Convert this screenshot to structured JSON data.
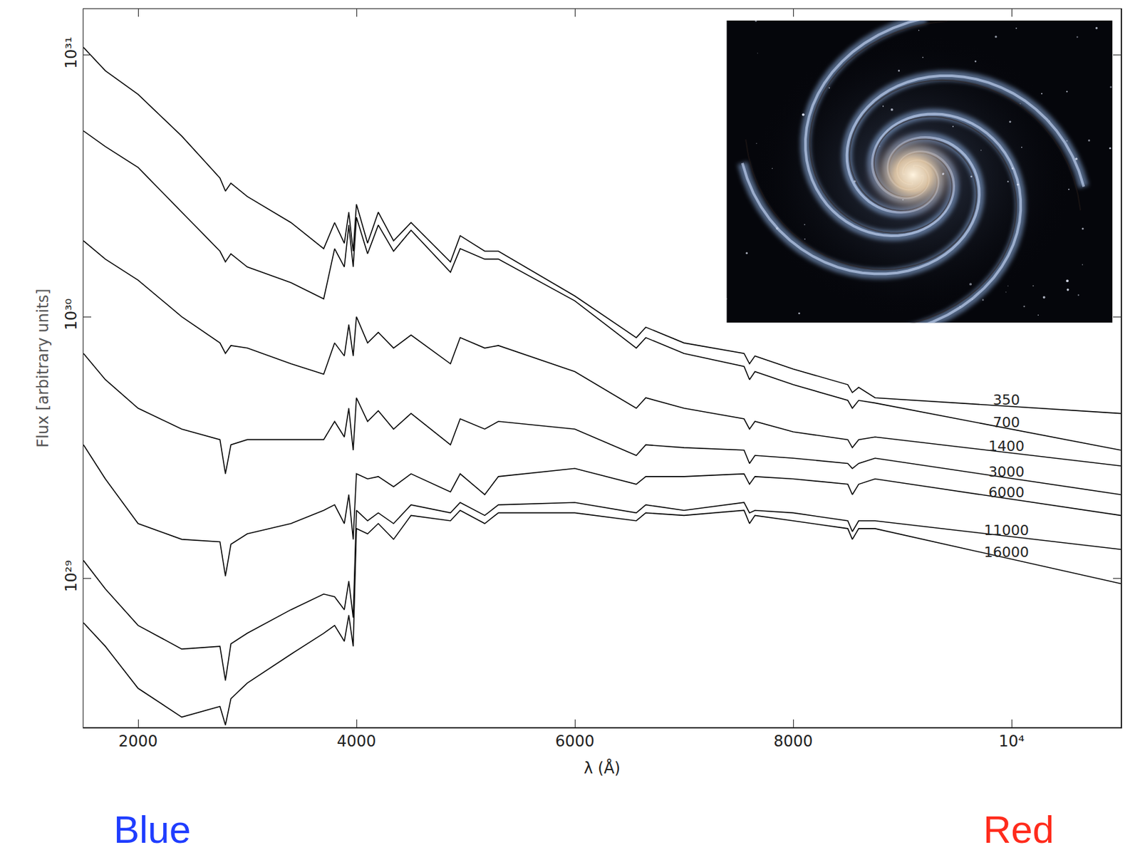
{
  "chart_data": {
    "type": "line",
    "x_label": "λ (Å)",
    "y_label": "Flux [arbitrary units]",
    "log": "y",
    "grid": false,
    "color": "#000000",
    "xlim": [
      1500,
      11000
    ],
    "ylim": [
      2.7e+28,
      1.5e+31
    ],
    "xticks": [
      2000,
      4000,
      6000,
      8000,
      {
        "value": 10000,
        "label": "10⁴"
      }
    ],
    "yticks": [
      {
        "value": 1e+29,
        "label": "10²⁹"
      },
      {
        "value": 1e+30,
        "label": "10³⁰"
      },
      {
        "value": 1e+31,
        "label": "10³¹"
      }
    ],
    "annotations": [
      {
        "text": "Blue",
        "color": "#1f3dff"
      },
      {
        "text": "Red",
        "color": "#ff2b1c"
      }
    ],
    "x": [
      1500,
      1700,
      2000,
      2400,
      2750,
      2800,
      2850,
      3000,
      3400,
      3700,
      3800,
      3889,
      3930,
      3970,
      4000,
      4102,
      4200,
      4340,
      4500,
      4861,
      4950,
      5175,
      5300,
      6000,
      6563,
      6650,
      7000,
      7550,
      7600,
      7650,
      8000,
      8500,
      8542,
      8600,
      8750,
      11000
    ],
    "series": [
      {
        "name": "350",
        "values": [
          1.07e+31,
          8.71e+30,
          7.08e+30,
          4.9e+30,
          3.39e+30,
          3.02e+30,
          3.24e+30,
          2.88e+30,
          2.29e+30,
          1.82e+30,
          2.29e+30,
          1.91e+30,
          2.51e+30,
          1.78e+30,
          2.69e+30,
          1.91e+30,
          2.51e+30,
          1.95e+30,
          2.29e+30,
          1.62e+30,
          2.04e+30,
          1.78e+30,
          1.78e+30,
          1.2e+30,
          8.32e+29,
          9.12e+29,
          7.94e+29,
          7.24e+29,
          6.61e+29,
          7.08e+29,
          6.31e+29,
          5.5e+29,
          5.13e+29,
          5.37e+29,
          4.9e+29,
          4.27e+29
        ]
      },
      {
        "name": "700",
        "values": [
          5.13e+30,
          4.47e+30,
          3.72e+30,
          2.51e+30,
          1.78e+30,
          1.62e+30,
          1.74e+30,
          1.55e+30,
          1.35e+30,
          1.17e+30,
          1.82e+30,
          1.55e+30,
          2.24e+30,
          1.55e+30,
          2.4e+30,
          1.74e+30,
          2.24e+30,
          1.78e+30,
          2.14e+30,
          1.48e+30,
          1.82e+30,
          1.66e+30,
          1.66e+30,
          1.15e+30,
          7.59e+29,
          8.32e+29,
          7.24e+29,
          6.46e+29,
          5.75e+29,
          6.17e+29,
          5.5e+29,
          4.79e+29,
          4.47e+29,
          4.79e+29,
          4.68e+29,
          3.09e+29
        ]
      },
      {
        "name": "1400",
        "values": [
          1.95e+30,
          1.66e+30,
          1.38e+30,
          1e+30,
          7.94e+29,
          7.24e+29,
          7.76e+29,
          7.59e+29,
          6.61e+29,
          6.03e+29,
          7.94e+29,
          7.08e+29,
          9.33e+29,
          7.08e+29,
          1e+30,
          7.94e+29,
          8.71e+29,
          7.59e+29,
          8.51e+29,
          6.61e+29,
          8.32e+29,
          7.59e+29,
          7.76e+29,
          6.17e+29,
          4.47e+29,
          4.9e+29,
          4.47e+29,
          4.07e+29,
          3.72e+29,
          3.98e+29,
          3.63e+29,
          3.39e+29,
          3.16e+29,
          3.39e+29,
          3.47e+29,
          2.69e+29
        ]
      },
      {
        "name": "3000",
        "values": [
          7.24e+29,
          5.75e+29,
          4.47e+29,
          3.72e+29,
          3.39e+29,
          2.51e+29,
          3.24e+29,
          3.39e+29,
          3.39e+29,
          3.39e+29,
          3.98e+29,
          3.47e+29,
          4.47e+29,
          3.09e+29,
          4.9e+29,
          3.98e+29,
          4.37e+29,
          3.72e+29,
          4.27e+29,
          3.24e+29,
          4.07e+29,
          3.72e+29,
          3.98e+29,
          3.72e+29,
          2.95e+29,
          3.24e+29,
          3.16e+29,
          3.09e+29,
          2.75e+29,
          2.95e+29,
          2.88e+29,
          2.75e+29,
          2.63e+29,
          2.75e+29,
          2.88e+29,
          2.09e+29
        ]
      },
      {
        "name": "6000",
        "values": [
          3.24e+29,
          2.4e+29,
          1.62e+29,
          1.41e+29,
          1.38e+29,
          1.02e+29,
          1.35e+29,
          1.48e+29,
          1.62e+29,
          1.82e+29,
          1.91e+29,
          1.62e+29,
          2.09e+29,
          1.41e+29,
          2.51e+29,
          2.4e+29,
          2.45e+29,
          2.24e+29,
          2.51e+29,
          2.14e+29,
          2.51e+29,
          2.09e+29,
          2.45e+29,
          2.63e+29,
          2.29e+29,
          2.45e+29,
          2.45e+29,
          2.51e+29,
          2.29e+29,
          2.45e+29,
          2.4e+29,
          2.29e+29,
          2.09e+29,
          2.29e+29,
          2.4e+29,
          1.74e+29
        ]
      },
      {
        "name": "11000",
        "values": [
          1.17e+29,
          9.12e+28,
          6.61e+28,
          5.37e+28,
          5.5e+28,
          4.07e+28,
          5.62e+28,
          6.17e+28,
          7.59e+28,
          8.71e+28,
          8.51e+28,
          7.59e+28,
          9.77e+28,
          7.08e+28,
          1.82e+29,
          1.66e+29,
          1.78e+29,
          1.62e+29,
          1.91e+29,
          1.78e+29,
          1.95e+29,
          1.74e+29,
          1.91e+29,
          1.95e+29,
          1.78e+29,
          1.91e+29,
          1.82e+29,
          1.95e+29,
          1.78e+29,
          1.82e+29,
          1.78e+29,
          1.66e+29,
          1.51e+29,
          1.66e+29,
          1.66e+29,
          1.29e+29
        ]
      },
      {
        "name": "16000",
        "values": [
          6.76e+28,
          5.5e+28,
          3.8e+28,
          2.95e+28,
          3.24e+28,
          2.75e+28,
          3.47e+28,
          3.98e+28,
          5.13e+28,
          6.17e+28,
          6.61e+28,
          5.75e+28,
          7.24e+28,
          5.5e+28,
          1.55e+29,
          1.48e+29,
          1.62e+29,
          1.41e+29,
          1.74e+29,
          1.66e+29,
          1.82e+29,
          1.62e+29,
          1.78e+29,
          1.78e+29,
          1.66e+29,
          1.78e+29,
          1.74e+29,
          1.82e+29,
          1.62e+29,
          1.74e+29,
          1.66e+29,
          1.55e+29,
          1.41e+29,
          1.55e+29,
          1.55e+29,
          9.55e+28
        ]
      }
    ]
  }
}
